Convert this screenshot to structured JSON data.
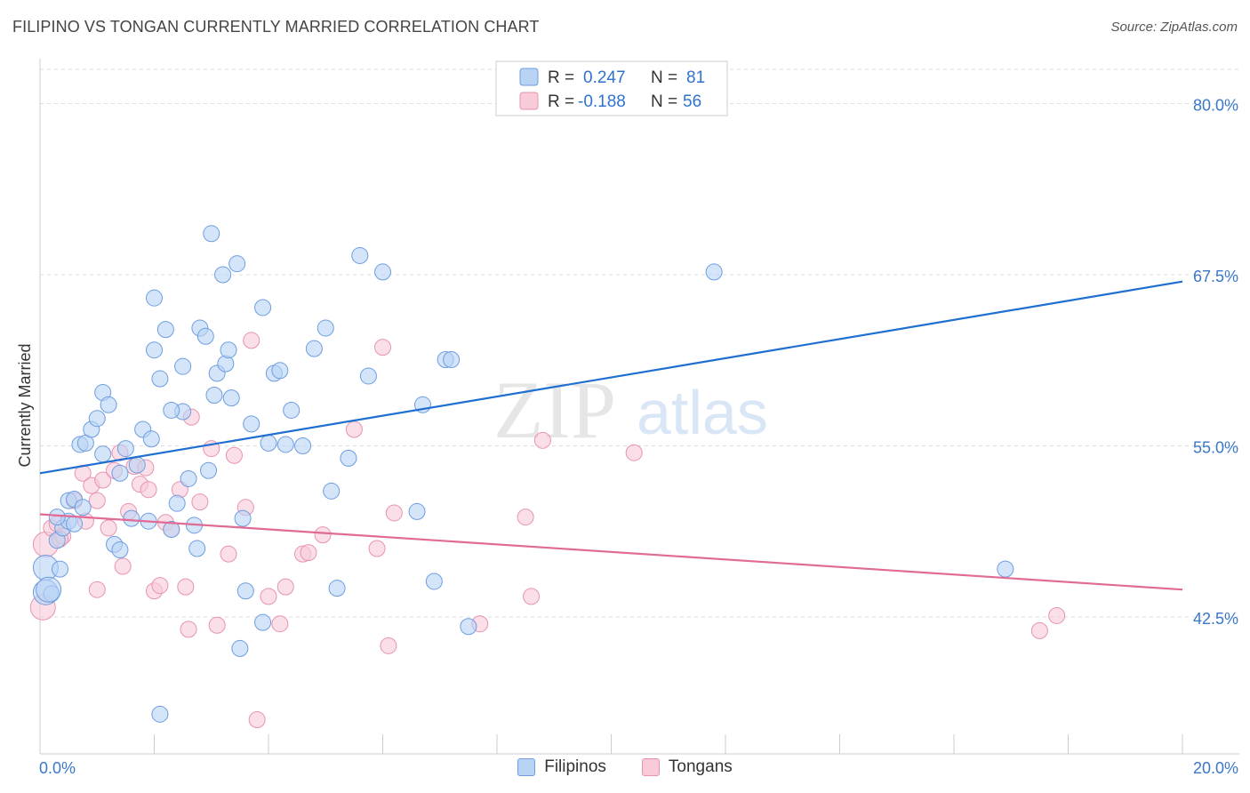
{
  "header": {
    "title": "FILIPINO VS TONGAN CURRENTLY MARRIED CORRELATION CHART",
    "source": "Source: ZipAtlas.com"
  },
  "watermark": {
    "zip": "ZIP",
    "atlas": "atlas"
  },
  "colors": {
    "blue": "#1f6fd1",
    "blue_fill": "#b9d3f5",
    "pink": "#e06b94",
    "pink_fill": "#f9cad8",
    "axis_label": "#3a78c8",
    "grid": "#dddddd"
  },
  "legend_box": {
    "rows": [
      {
        "r_label": "R =",
        "r_value": "0.247",
        "n_label": "N =",
        "n_value": "81"
      },
      {
        "r_label": "R =",
        "r_value": "-0.188",
        "n_label": "N =",
        "n_value": "56"
      }
    ]
  },
  "bottom_legend": {
    "series1": "Filipinos",
    "series2": "Tongans"
  },
  "chart_data": {
    "type": "scatter",
    "title": "FILIPINO VS TONGAN CURRENTLY MARRIED CORRELATION CHART",
    "ylabel": "Currently Married",
    "xlabel": "",
    "xlim": [
      0,
      20
    ],
    "ylim": [
      32.5,
      82.5
    ],
    "x_tick_labels": [
      "0.0%",
      "20.0%"
    ],
    "y_ticks": [
      80.0,
      67.5,
      55.0,
      42.5
    ],
    "y_tick_labels": [
      "80.0%",
      "67.5%",
      "55.0%",
      "42.5%"
    ],
    "grid": true,
    "legend_position": "top-center",
    "series": [
      {
        "name": "Filipinos",
        "color": "#1f6fd1",
        "trend": {
          "x": [
            0,
            20
          ],
          "y": [
            53.0,
            67.0
          ]
        },
        "points": [
          [
            0.1,
            44.3
          ],
          [
            0.1,
            46.1
          ],
          [
            0.2,
            44.2
          ],
          [
            0.3,
            48.1
          ],
          [
            0.35,
            46.0
          ],
          [
            0.4,
            49.0
          ],
          [
            0.5,
            49.5
          ],
          [
            0.5,
            51.0
          ],
          [
            0.6,
            51.1
          ],
          [
            0.7,
            55.1
          ],
          [
            0.75,
            50.5
          ],
          [
            0.8,
            55.2
          ],
          [
            0.9,
            56.2
          ],
          [
            1.0,
            57.0
          ],
          [
            1.1,
            58.9
          ],
          [
            1.2,
            58.0
          ],
          [
            1.3,
            47.8
          ],
          [
            1.4,
            47.4
          ],
          [
            1.4,
            53.0
          ],
          [
            1.5,
            54.8
          ],
          [
            1.6,
            49.7
          ],
          [
            1.7,
            53.6
          ],
          [
            1.8,
            56.2
          ],
          [
            1.9,
            49.5
          ],
          [
            1.95,
            55.5
          ],
          [
            2.0,
            62.0
          ],
          [
            2.0,
            65.8
          ],
          [
            2.1,
            59.9
          ],
          [
            2.1,
            35.4
          ],
          [
            2.2,
            63.5
          ],
          [
            2.3,
            48.9
          ],
          [
            2.4,
            50.8
          ],
          [
            2.5,
            60.8
          ],
          [
            2.5,
            57.5
          ],
          [
            2.6,
            52.6
          ],
          [
            2.7,
            49.2
          ],
          [
            2.75,
            47.5
          ],
          [
            2.8,
            63.6
          ],
          [
            2.9,
            63.0
          ],
          [
            2.95,
            53.2
          ],
          [
            3.0,
            70.5
          ],
          [
            3.05,
            58.7
          ],
          [
            3.1,
            60.3
          ],
          [
            3.2,
            67.5
          ],
          [
            3.25,
            61.0
          ],
          [
            3.3,
            62.0
          ],
          [
            3.35,
            58.5
          ],
          [
            3.45,
            68.3
          ],
          [
            3.5,
            40.2
          ],
          [
            3.55,
            49.7
          ],
          [
            3.6,
            44.4
          ],
          [
            3.7,
            56.6
          ],
          [
            3.9,
            65.1
          ],
          [
            4.0,
            55.2
          ],
          [
            4.1,
            60.3
          ],
          [
            4.2,
            60.5
          ],
          [
            4.3,
            55.1
          ],
          [
            4.4,
            57.6
          ],
          [
            4.6,
            55.0
          ],
          [
            4.8,
            62.1
          ],
          [
            5.0,
            63.6
          ],
          [
            5.1,
            51.7
          ],
          [
            5.4,
            54.1
          ],
          [
            5.6,
            68.9
          ],
          [
            5.75,
            60.1
          ],
          [
            6.0,
            67.7
          ],
          [
            6.6,
            50.2
          ],
          [
            6.7,
            58.0
          ],
          [
            7.1,
            61.3
          ],
          [
            7.2,
            61.3
          ],
          [
            7.5,
            41.8
          ],
          [
            11.8,
            67.7
          ],
          [
            16.9,
            46.0
          ],
          [
            0.15,
            44.5
          ],
          [
            0.3,
            49.8
          ],
          [
            0.6,
            49.3
          ],
          [
            1.1,
            54.4
          ],
          [
            2.3,
            57.6
          ],
          [
            3.9,
            42.1
          ],
          [
            5.2,
            44.6
          ],
          [
            6.9,
            45.1
          ]
        ]
      },
      {
        "name": "Tongans",
        "color": "#e06b94",
        "trend": {
          "x": [
            0,
            20
          ],
          "y": [
            50.0,
            44.5
          ]
        },
        "points": [
          [
            0.05,
            43.2
          ],
          [
            0.1,
            47.8
          ],
          [
            0.2,
            49.0
          ],
          [
            0.3,
            49.3
          ],
          [
            0.4,
            48.4
          ],
          [
            0.6,
            51.0
          ],
          [
            0.75,
            53.0
          ],
          [
            0.8,
            49.5
          ],
          [
            0.9,
            52.1
          ],
          [
            1.0,
            44.5
          ],
          [
            1.1,
            52.5
          ],
          [
            1.2,
            49.0
          ],
          [
            1.3,
            53.2
          ],
          [
            1.4,
            54.5
          ],
          [
            1.45,
            46.2
          ],
          [
            1.55,
            50.2
          ],
          [
            1.65,
            53.5
          ],
          [
            1.75,
            52.2
          ],
          [
            1.85,
            53.4
          ],
          [
            1.9,
            51.8
          ],
          [
            2.0,
            44.4
          ],
          [
            2.1,
            44.8
          ],
          [
            2.2,
            49.4
          ],
          [
            2.3,
            48.9
          ],
          [
            2.45,
            51.8
          ],
          [
            2.55,
            44.7
          ],
          [
            2.6,
            41.6
          ],
          [
            2.65,
            57.1
          ],
          [
            2.8,
            50.9
          ],
          [
            3.0,
            54.8
          ],
          [
            3.1,
            41.9
          ],
          [
            3.3,
            47.1
          ],
          [
            3.4,
            54.3
          ],
          [
            3.6,
            50.5
          ],
          [
            3.7,
            62.7
          ],
          [
            3.8,
            35.0
          ],
          [
            4.0,
            44.0
          ],
          [
            4.2,
            42.0
          ],
          [
            4.3,
            44.7
          ],
          [
            4.6,
            47.1
          ],
          [
            4.7,
            47.2
          ],
          [
            4.95,
            48.5
          ],
          [
            5.5,
            56.2
          ],
          [
            5.9,
            47.5
          ],
          [
            6.0,
            62.2
          ],
          [
            6.1,
            40.4
          ],
          [
            6.2,
            50.1
          ],
          [
            7.7,
            42.0
          ],
          [
            8.5,
            49.8
          ],
          [
            8.6,
            44.0
          ],
          [
            8.8,
            55.4
          ],
          [
            10.4,
            54.5
          ],
          [
            17.5,
            41.5
          ],
          [
            17.8,
            42.6
          ],
          [
            0.35,
            48.2
          ],
          [
            1.0,
            51.0
          ]
        ]
      }
    ]
  }
}
